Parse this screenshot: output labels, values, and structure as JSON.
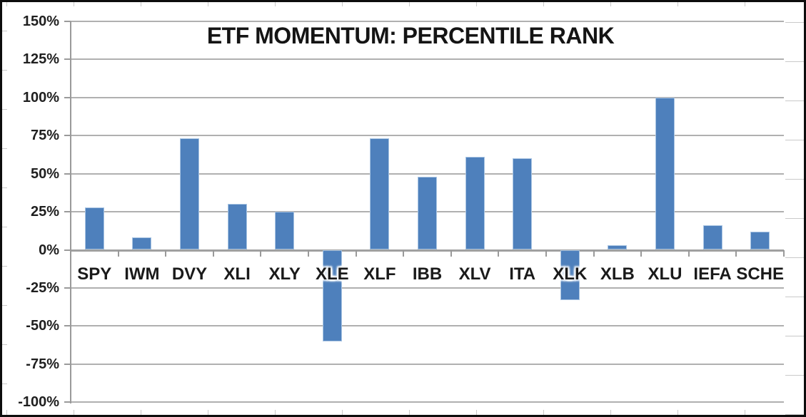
{
  "window": {
    "background": "#ffffff",
    "border_color": "#0d0d0d"
  },
  "chart_data": {
    "type": "bar",
    "title": "ETF MOMENTUM: PERCENTILE RANK",
    "categories": [
      "SPY",
      "IWM",
      "DVY",
      "XLI",
      "XLY",
      "XLE",
      "XLF",
      "IBB",
      "XLV",
      "ITA",
      "XLK",
      "XLB",
      "XLU",
      "IEFA",
      "SCHE"
    ],
    "values": [
      28,
      8,
      73,
      30,
      25,
      -60,
      73,
      48,
      61,
      60,
      -33,
      3,
      100,
      16,
      12
    ],
    "series_name": "Percentile Rank",
    "xlabel": "",
    "ylabel": "",
    "ylim": [
      -100,
      150
    ],
    "ytick_step": 25,
    "yticks": [
      150,
      125,
      100,
      75,
      50,
      25,
      0,
      -25,
      -50,
      -75,
      -100
    ],
    "ytick_labels": [
      "150%",
      "125%",
      "100%",
      "75%",
      "50%",
      "25%",
      "0%",
      "-25%",
      "-50%",
      "-75%",
      "-100%"
    ],
    "grid": true,
    "legend": false,
    "legend_position": "none",
    "colors": {
      "bar_fill": "#4e80bc",
      "bar_border": "#a9c5e3",
      "gridline": "#b0b0b0",
      "zero_axis": "#a0a0a0",
      "axis": "#9a9a9a",
      "title_text": "#141414",
      "tick_text": "#1f1f1f",
      "worksheet_tick": "#c9c9c9"
    }
  }
}
